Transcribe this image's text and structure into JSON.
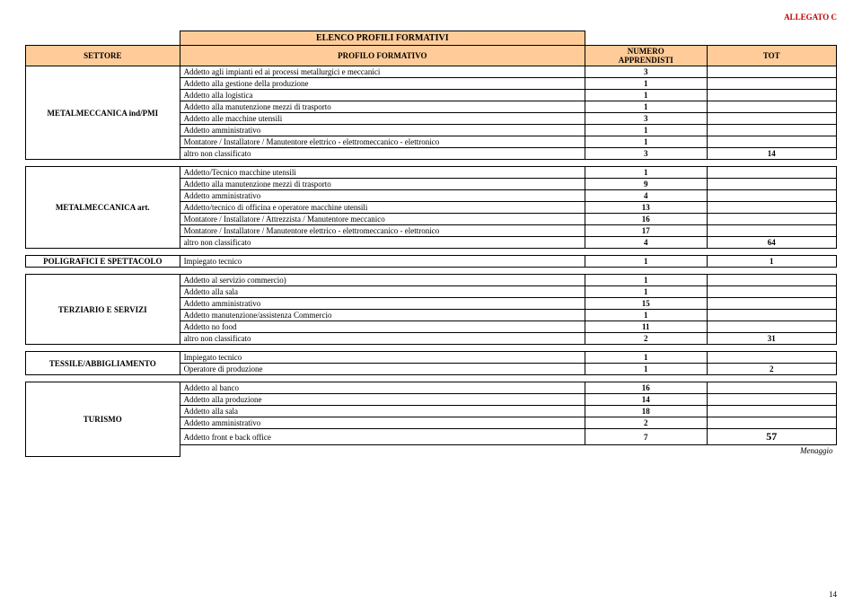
{
  "allegato": "ALLEGATO C",
  "title": "ELENCO PROFILI FORMATIVI",
  "headers": {
    "settore": "SETTORE",
    "profilo": "PROFILO FORMATIVO",
    "numero": "NUMERO APPRENDISTI",
    "tot": "TOT"
  },
  "sections": [
    {
      "sector": "METALMECCANICA ind/PMI",
      "rows": [
        {
          "p": "Addetto agli impianti ed ai processi metallurgici e meccanici",
          "n": "3",
          "t": ""
        },
        {
          "p": "Addetto alla gestione della produzione",
          "n": "1",
          "t": ""
        },
        {
          "p": "Addetto alla logistica",
          "n": "1",
          "t": ""
        },
        {
          "p": "Addetto alla manutenzione mezzi di trasporto",
          "n": "1",
          "t": ""
        },
        {
          "p": "Addetto alle macchine utensili",
          "n": "3",
          "t": ""
        },
        {
          "p": "Addetto amministrativo",
          "n": "1",
          "t": ""
        },
        {
          "p": "Montatore / Installatore / Manutentore elettrico - elettromeccanico - elettronico",
          "n": "1",
          "t": ""
        },
        {
          "p": "altro non classificato",
          "n": "3",
          "t": "14"
        }
      ]
    },
    {
      "sector": "METALMECCANICA art.",
      "rows": [
        {
          "p": "Addetto/Tecnico macchine utensili",
          "n": "1",
          "t": ""
        },
        {
          "p": "Addetto alla manutenzione mezzi di trasporto",
          "n": "9",
          "t": ""
        },
        {
          "p": "Addetto amministrativo",
          "n": "4",
          "t": ""
        },
        {
          "p": "Addetto/tecnico di officina e operatore macchine utensili",
          "n": "13",
          "t": ""
        },
        {
          "p": "Montatore / Installatore / Attrezzista / Manutentore meccanico",
          "n": "16",
          "t": ""
        },
        {
          "p": "Montatore / Installatore / Manutentore elettrico - elettromeccanico - elettronico",
          "n": "17",
          "t": ""
        },
        {
          "p": "altro non classificato",
          "n": "4",
          "t": "64"
        }
      ]
    },
    {
      "sector": "POLIGRAFICI E SPETTACOLO",
      "rows": [
        {
          "p": "Impiegato tecnico",
          "n": "1",
          "t": "1"
        }
      ]
    },
    {
      "sector": "TERZIARIO E SERVIZI",
      "rows": [
        {
          "p": "Addetto al servizio commercio)",
          "n": "1",
          "t": ""
        },
        {
          "p": "Addetto alla sala",
          "n": "1",
          "t": ""
        },
        {
          "p": "Addetto amministrativo",
          "n": "15",
          "t": ""
        },
        {
          "p": "Addetto manutenzione/assistenza Commercio",
          "n": "1",
          "t": ""
        },
        {
          "p": "Addetto no food",
          "n": "11",
          "t": ""
        },
        {
          "p": "altro non classificato",
          "n": "2",
          "t": "31"
        }
      ]
    },
    {
      "sector": "TESSILE/ABBIGLIAMENTO",
      "rows": [
        {
          "p": "Impiegato tecnico",
          "n": "1",
          "t": ""
        },
        {
          "p": "Operatore di produzione",
          "n": "1",
          "t": "2"
        }
      ]
    },
    {
      "sector": "TURISMO",
      "rows": [
        {
          "p": "Addetto al banco",
          "n": "16",
          "t": ""
        },
        {
          "p": "Addetto alla produzione",
          "n": "14",
          "t": ""
        },
        {
          "p": "Addetto alla sala",
          "n": "18",
          "t": ""
        },
        {
          "p": "Addetto amministrativo",
          "n": "2",
          "t": ""
        },
        {
          "p": "Addetto front e back office",
          "n": "7",
          "t": "57",
          "tbig": true
        }
      ],
      "note": "Menaggio"
    }
  ],
  "page_number": "14"
}
